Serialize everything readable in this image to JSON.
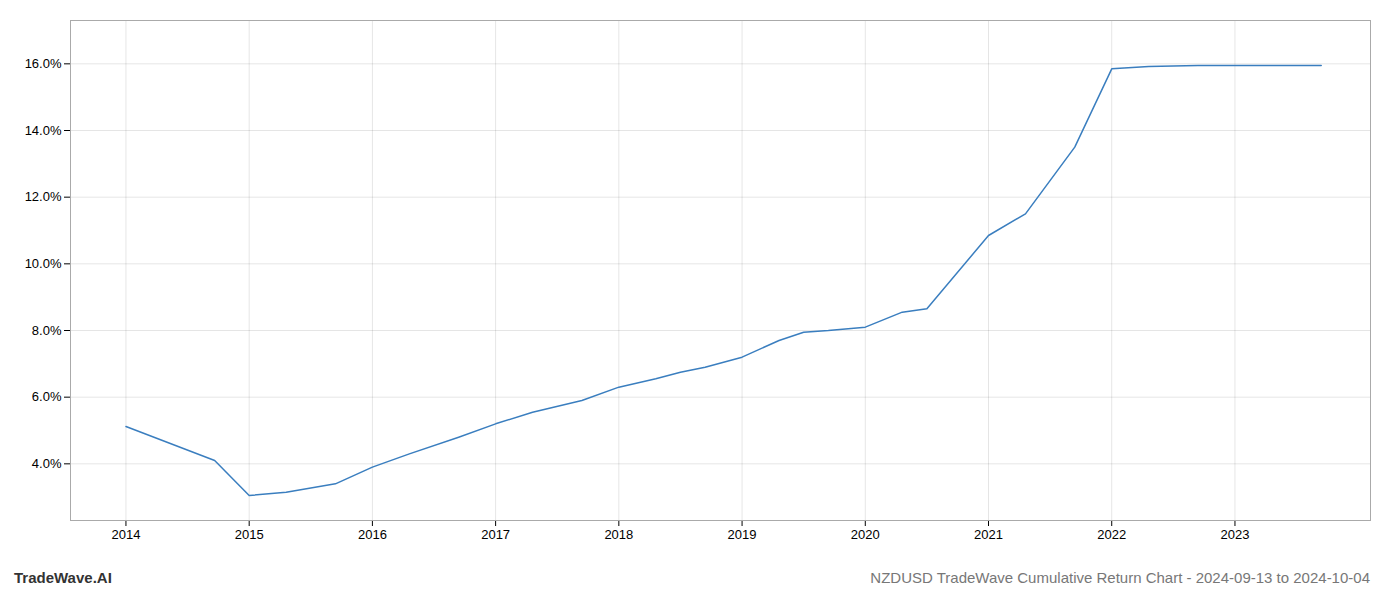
{
  "chart_data": {
    "type": "line",
    "title": "NZDUSD TradeWave Cumulative Return Chart - 2024-09-13 to 2024-10-04",
    "annotations": [
      "TradeWave.AI"
    ],
    "x": [
      2014.0,
      2014.72,
      2015.0,
      2015.3,
      2015.7,
      2016.0,
      2016.3,
      2016.7,
      2017.0,
      2017.3,
      2017.7,
      2018.0,
      2018.3,
      2018.5,
      2018.7,
      2019.0,
      2019.3,
      2019.5,
      2019.7,
      2020.0,
      2020.3,
      2020.5,
      2021.0,
      2021.3,
      2021.7,
      2022.0,
      2022.3,
      2022.7,
      2023.0,
      2023.7
    ],
    "values": [
      5.12,
      4.1,
      3.05,
      3.15,
      3.4,
      3.9,
      4.3,
      4.8,
      5.2,
      5.55,
      5.9,
      6.3,
      6.55,
      6.75,
      6.9,
      7.2,
      7.7,
      7.95,
      8.0,
      8.1,
      8.55,
      8.65,
      10.85,
      11.5,
      13.5,
      15.85,
      15.92,
      15.95,
      15.95,
      15.95
    ],
    "color": "#3a7ebf",
    "xlim": [
      2013.55,
      2024.1
    ],
    "xticks": [
      2014,
      2015,
      2016,
      2017,
      2018,
      2019,
      2020,
      2021,
      2022,
      2023
    ],
    "ylim": [
      2.3,
      17.3
    ],
    "yticks": [
      {
        "value": 4.0,
        "label": "4.0%"
      },
      {
        "value": 6.0,
        "label": "6.0%"
      },
      {
        "value": 8.0,
        "label": "8.0%"
      },
      {
        "value": 10.0,
        "label": "10.0%"
      },
      {
        "value": 12.0,
        "label": "12.0%"
      },
      {
        "value": 14.0,
        "label": "14.0%"
      },
      {
        "value": 16.0,
        "label": "16.0%"
      }
    ],
    "grid": true
  }
}
